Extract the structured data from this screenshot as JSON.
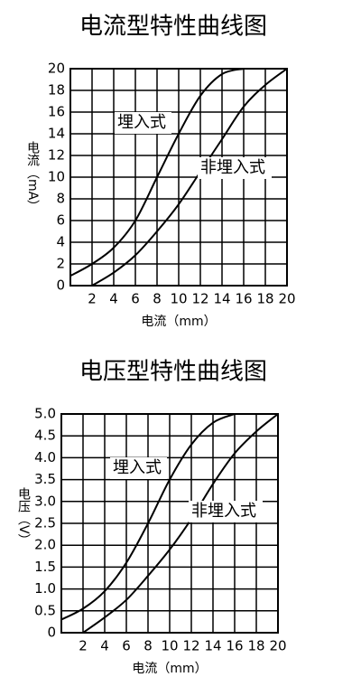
{
  "chart_data": [
    {
      "type": "line",
      "title": "电流型特性曲线图",
      "x_label": "电流（mm）",
      "y_label": "电流（mA）",
      "x": [
        0,
        2,
        4,
        6,
        8,
        10,
        12,
        14,
        16,
        18,
        20
      ],
      "series": [
        {
          "name": "埋入式",
          "color": "#000000",
          "values": [
            0.9,
            2,
            3.5,
            6,
            10,
            14,
            17.5,
            19.5,
            20,
            null,
            null
          ]
        },
        {
          "name": "非埋入式",
          "color": "#000000",
          "values": [
            null,
            0,
            1.2,
            2.8,
            5,
            7.5,
            10.5,
            13.5,
            16.5,
            18.5,
            20
          ]
        }
      ],
      "xlim": [
        0,
        20
      ],
      "xticks": [
        2,
        4,
        6,
        8,
        10,
        12,
        14,
        16,
        18,
        20
      ],
      "ylim": [
        0,
        20
      ],
      "yticks": [
        0,
        2,
        4,
        6,
        8,
        10,
        12,
        14,
        16,
        18,
        20
      ],
      "grid": true
    },
    {
      "type": "line",
      "title": "电压型特性曲线图",
      "x_label": "电流（mm）",
      "y_label": "电压（V）",
      "x": [
        0,
        2,
        4,
        6,
        8,
        10,
        12,
        14,
        16,
        18,
        20
      ],
      "series": [
        {
          "name": "埋入式",
          "color": "#000000",
          "values": [
            0.3,
            0.55,
            0.95,
            1.6,
            2.5,
            3.5,
            4.3,
            4.8,
            5.0,
            null,
            null
          ]
        },
        {
          "name": "非埋入式",
          "color": "#000000",
          "values": [
            null,
            0,
            0.35,
            0.75,
            1.3,
            1.9,
            2.6,
            3.4,
            4.1,
            4.6,
            5.0
          ]
        }
      ],
      "xlim": [
        0,
        20
      ],
      "xticks": [
        2,
        4,
        6,
        8,
        10,
        12,
        14,
        16,
        18,
        20
      ],
      "ylim": [
        0,
        5
      ],
      "yticks": [
        0,
        0.5,
        {
          "value": 1,
          "label": "1.0"
        },
        1.5,
        {
          "value": 2,
          "label": "2.0"
        },
        2.5,
        {
          "value": 3,
          "label": "3.0"
        },
        3.5,
        {
          "value": 4,
          "label": "4.0"
        },
        4.5,
        {
          "value": 5,
          "label": "5.0"
        }
      ],
      "grid": true
    }
  ]
}
